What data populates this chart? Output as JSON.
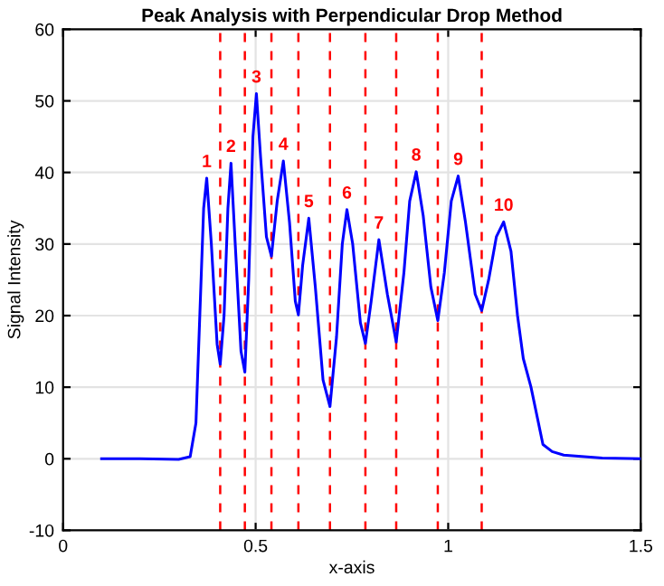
{
  "chart_data": {
    "type": "line",
    "title": "Peak Analysis with Perpendicular Drop Method",
    "xlabel": "x-axis",
    "ylabel": "Signal Intensity",
    "series": [
      {
        "color": "#0000ff",
        "x": [
          0.1,
          0.2,
          0.3,
          0.33,
          0.345,
          0.355,
          0.365,
          0.373,
          0.385,
          0.4,
          0.408,
          0.418,
          0.428,
          0.436,
          0.447,
          0.462,
          0.472,
          0.482,
          0.493,
          0.502,
          0.513,
          0.528,
          0.541,
          0.556,
          0.572,
          0.588,
          0.603,
          0.611,
          0.622,
          0.638,
          0.655,
          0.675,
          0.693,
          0.71,
          0.725,
          0.737,
          0.752,
          0.772,
          0.785,
          0.8,
          0.82,
          0.842,
          0.865,
          0.885,
          0.9,
          0.917,
          0.935,
          0.955,
          0.973,
          0.99,
          1.008,
          1.026,
          1.045,
          1.07,
          1.087,
          1.105,
          1.125,
          1.144,
          1.163,
          1.18,
          1.195,
          1.215,
          1.246,
          1.27,
          1.3,
          1.4,
          1.5
        ],
        "values": [
          0,
          0,
          -0.1,
          0.3,
          5,
          20,
          35,
          39.2,
          30,
          16,
          13.2,
          20,
          35,
          41.3,
          30,
          15,
          12.1,
          25,
          45,
          51,
          42,
          31,
          28.3,
          36,
          41.6,
          33,
          22,
          20.1,
          27,
          33.6,
          24,
          11,
          7.3,
          17,
          30,
          34.8,
          30,
          19,
          16.1,
          22,
          30.6,
          23,
          16.3,
          26,
          36,
          40.1,
          34,
          24,
          19.3,
          26,
          36,
          39.5,
          33,
          23,
          20.7,
          25,
          31,
          33.1,
          29,
          20,
          14,
          10,
          2,
          1,
          0.5,
          0.1,
          0
        ]
      }
    ],
    "xlim": [
      0,
      1.5
    ],
    "xticks": [
      0,
      0.5,
      1,
      1.5
    ],
    "ylim": [
      -10,
      60
    ],
    "yticks": [
      -10,
      0,
      10,
      20,
      30,
      40,
      50,
      60
    ],
    "grid": true,
    "marker": "none",
    "line_style": "solid",
    "ref_lines": [
      {
        "axis": "x",
        "value": 0.408,
        "color": "#ff0000",
        "line_style": "dashed"
      },
      {
        "axis": "x",
        "value": 0.472,
        "color": "#ff0000",
        "line_style": "dashed"
      },
      {
        "axis": "x",
        "value": 0.541,
        "color": "#ff0000",
        "line_style": "dashed"
      },
      {
        "axis": "x",
        "value": 0.611,
        "color": "#ff0000",
        "line_style": "dashed"
      },
      {
        "axis": "x",
        "value": 0.693,
        "color": "#ff0000",
        "line_style": "dashed"
      },
      {
        "axis": "x",
        "value": 0.785,
        "color": "#ff0000",
        "line_style": "dashed"
      },
      {
        "axis": "x",
        "value": 0.865,
        "color": "#ff0000",
        "line_style": "dashed"
      },
      {
        "axis": "x",
        "value": 0.973,
        "color": "#ff0000",
        "line_style": "dashed"
      },
      {
        "axis": "x",
        "value": 1.087,
        "color": "#ff0000",
        "line_style": "dashed"
      }
    ],
    "annotations": [
      {
        "text": "1",
        "x": 0.373,
        "y": 39.2
      },
      {
        "text": "2",
        "x": 0.436,
        "y": 41.3
      },
      {
        "text": "3",
        "x": 0.502,
        "y": 51
      },
      {
        "text": "4",
        "x": 0.572,
        "y": 41.6
      },
      {
        "text": "5",
        "x": 0.638,
        "y": 33.6
      },
      {
        "text": "6",
        "x": 0.737,
        "y": 34.8
      },
      {
        "text": "7",
        "x": 0.82,
        "y": 30.6
      },
      {
        "text": "8",
        "x": 0.917,
        "y": 40.1
      },
      {
        "text": "9",
        "x": 1.026,
        "y": 39.5
      },
      {
        "text": "10",
        "x": 1.144,
        "y": 33.1
      }
    ]
  }
}
